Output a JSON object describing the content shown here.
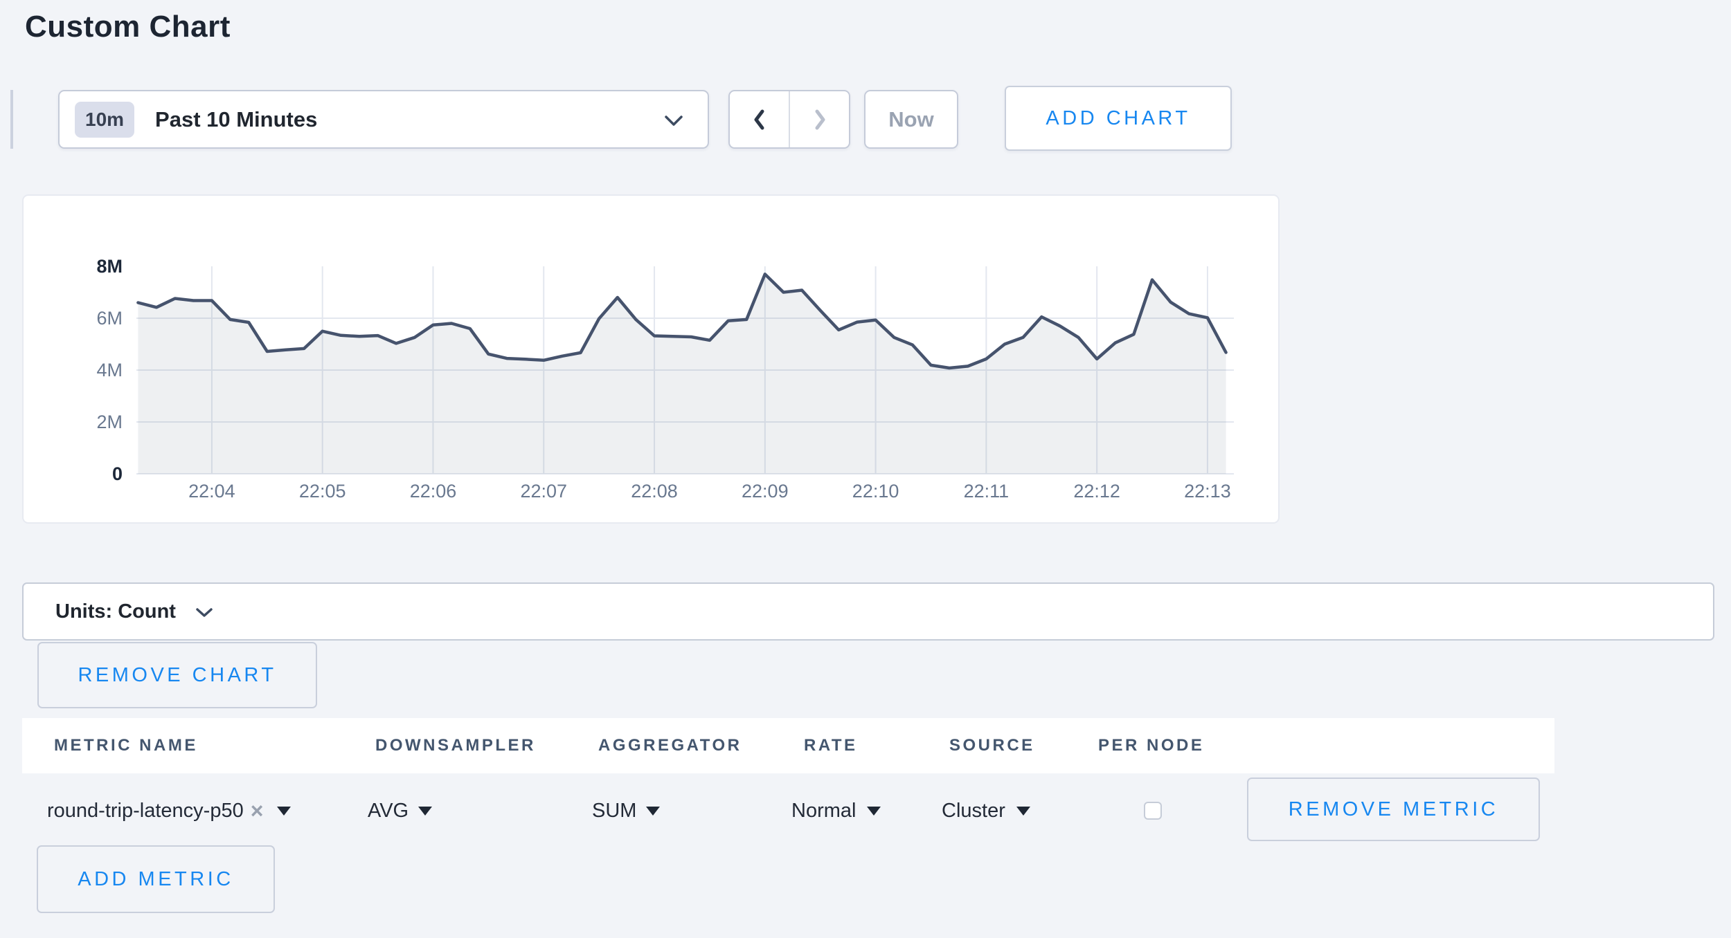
{
  "page": {
    "title": "Custom Chart",
    "background": "#f2f4f8",
    "accent_blue": "#1787f0"
  },
  "toolbar": {
    "time_range": {
      "badge": "10m",
      "label": "Past 10 Minutes"
    },
    "now_label": "Now",
    "add_chart_label": "ADD CHART"
  },
  "chart_data": {
    "type": "area",
    "title": "",
    "xlabel": "",
    "ylabel": "",
    "x_ticks": [
      "22:04",
      "22:05",
      "22:06",
      "22:07",
      "22:08",
      "22:09",
      "22:10",
      "22:11",
      "22:12",
      "22:13"
    ],
    "y_ticks": [
      "8M",
      "6M",
      "4M",
      "2M",
      "0"
    ],
    "ylim": [
      0,
      8000000
    ],
    "y_unit_multiplier": 1000000,
    "tick_interval_seconds": 60,
    "first_tick_t": 40,
    "grid": true,
    "legend": "none",
    "style": {
      "grid_color": "#e3e7ef",
      "tick_color": "#69788f",
      "tick_color_strong": "#1d2839",
      "line_color": "#46536d",
      "fill_color": "#475872",
      "fill_opacity": 0.09
    },
    "series": [
      {
        "name": "round-trip-latency-p50",
        "values_in_millions": true,
        "points": [
          [
            0,
            6.6
          ],
          [
            10,
            6.42
          ],
          [
            20,
            6.76
          ],
          [
            30,
            6.68
          ],
          [
            40,
            6.68
          ],
          [
            50,
            5.95
          ],
          [
            60,
            5.84
          ],
          [
            70,
            4.72
          ],
          [
            80,
            4.78
          ],
          [
            90,
            4.83
          ],
          [
            100,
            5.5
          ],
          [
            110,
            5.34
          ],
          [
            120,
            5.3
          ],
          [
            130,
            5.33
          ],
          [
            140,
            5.03
          ],
          [
            150,
            5.26
          ],
          [
            160,
            5.74
          ],
          [
            170,
            5.8
          ],
          [
            180,
            5.6
          ],
          [
            190,
            4.62
          ],
          [
            200,
            4.45
          ],
          [
            210,
            4.42
          ],
          [
            220,
            4.38
          ],
          [
            230,
            4.54
          ],
          [
            240,
            4.67
          ],
          [
            250,
            5.98
          ],
          [
            260,
            6.8
          ],
          [
            270,
            5.95
          ],
          [
            280,
            5.32
          ],
          [
            290,
            5.3
          ],
          [
            300,
            5.28
          ],
          [
            310,
            5.15
          ],
          [
            320,
            5.9
          ],
          [
            330,
            5.95
          ],
          [
            340,
            7.7
          ],
          [
            350,
            7.0
          ],
          [
            360,
            7.08
          ],
          [
            370,
            6.3
          ],
          [
            380,
            5.55
          ],
          [
            390,
            5.85
          ],
          [
            400,
            5.93
          ],
          [
            410,
            5.26
          ],
          [
            420,
            4.97
          ],
          [
            430,
            4.19
          ],
          [
            440,
            4.08
          ],
          [
            450,
            4.15
          ],
          [
            460,
            4.43
          ],
          [
            470,
            5.0
          ],
          [
            480,
            5.26
          ],
          [
            490,
            6.05
          ],
          [
            500,
            5.7
          ],
          [
            510,
            5.26
          ],
          [
            520,
            4.43
          ],
          [
            530,
            5.05
          ],
          [
            540,
            5.38
          ],
          [
            550,
            7.48
          ],
          [
            560,
            6.62
          ],
          [
            570,
            6.17
          ],
          [
            580,
            6.02
          ],
          [
            590,
            4.68
          ]
        ]
      }
    ]
  },
  "units_bar": {
    "label": "Units: Count"
  },
  "remove_chart_label": "REMOVE CHART",
  "metrics_table": {
    "columns": [
      "METRIC NAME",
      "DOWNSAMPLER",
      "AGGREGATOR",
      "RATE",
      "SOURCE",
      "PER NODE"
    ],
    "rows": [
      {
        "metric_name": "round-trip-latency-p50",
        "downsampler": "AVG",
        "aggregator": "SUM",
        "rate": "Normal",
        "source": "Cluster",
        "per_node_checked": false,
        "remove_label": "REMOVE METRIC"
      }
    ]
  },
  "add_metric_label": "ADD METRIC"
}
